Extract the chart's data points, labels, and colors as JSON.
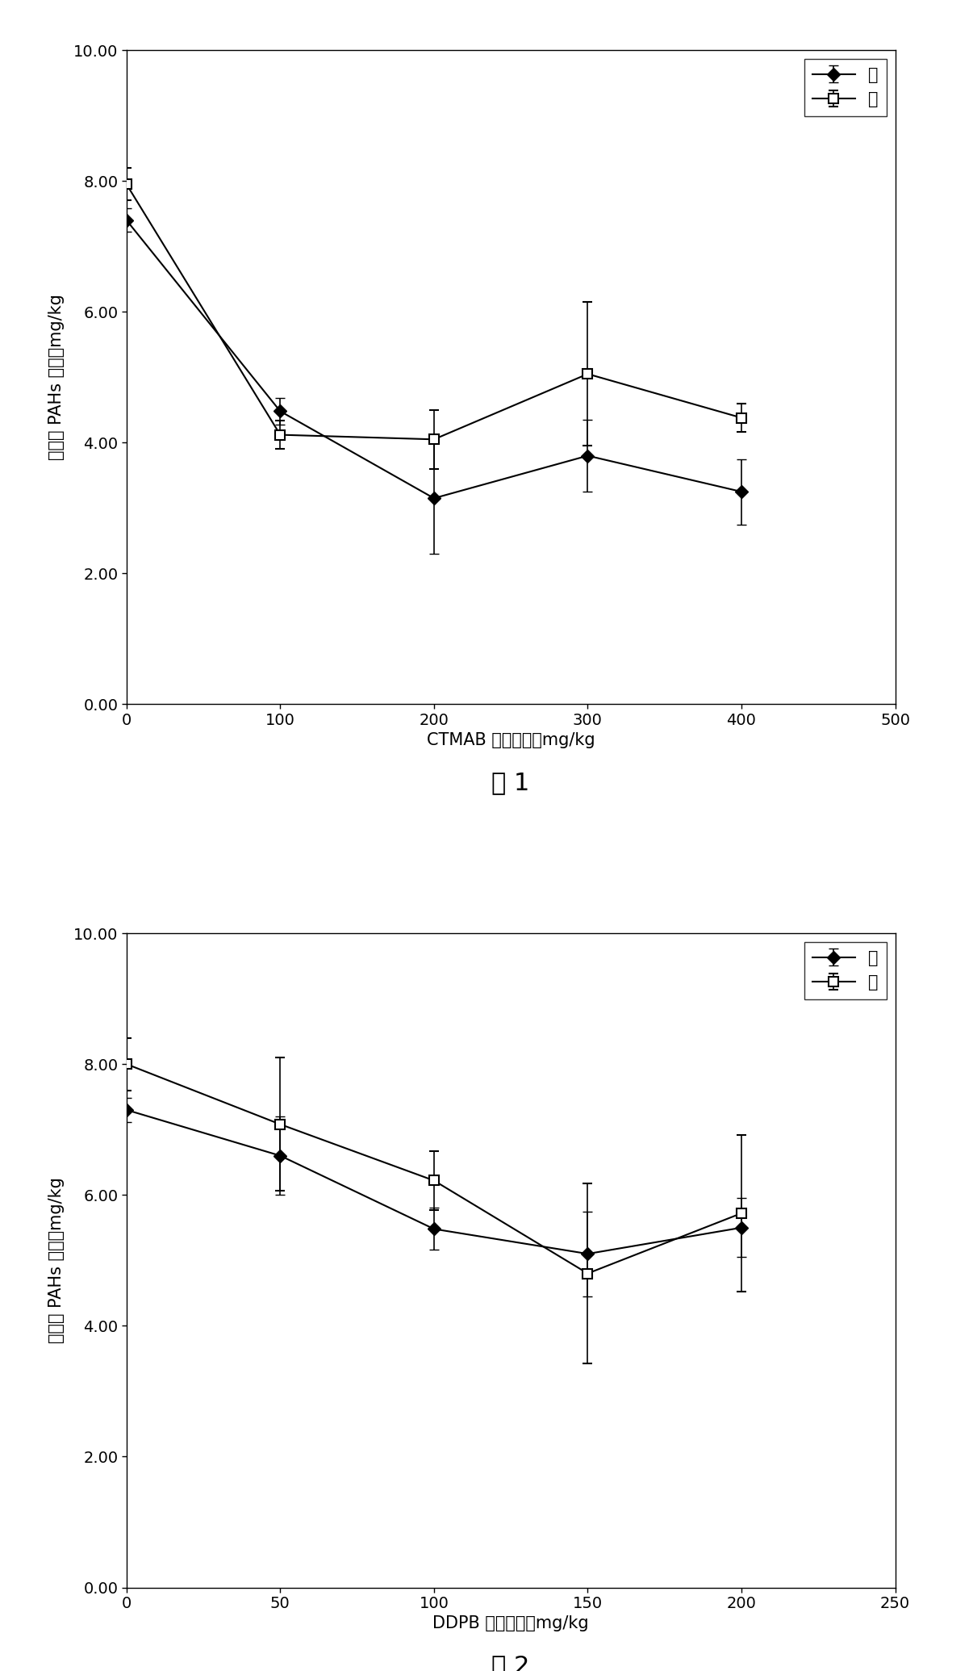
{
  "fig1": {
    "x": [
      0,
      100,
      200,
      300,
      400
    ],
    "y_fei": [
      7.4,
      4.48,
      3.15,
      3.8,
      3.25
    ],
    "y_ton": [
      7.95,
      4.12,
      4.05,
      5.05,
      4.38
    ],
    "yerr_fei": [
      0.18,
      0.2,
      0.85,
      0.55,
      0.5
    ],
    "yerr_ton": [
      0.25,
      0.22,
      0.45,
      1.1,
      0.22
    ],
    "xlabel": "CTMAB 投加浓度，mg/kg",
    "ylabel": "苎叶中 PAHs 含量，mg/kg",
    "caption": "图 1",
    "ylim": [
      0.0,
      10.0
    ],
    "yticks": [
      0.0,
      2.0,
      4.0,
      6.0,
      8.0,
      10.0
    ],
    "xlim": [
      0,
      500
    ],
    "xticks": [
      0,
      100,
      200,
      300,
      400,
      500
    ]
  },
  "fig2": {
    "x": [
      0,
      50,
      100,
      150,
      200
    ],
    "y_fei": [
      7.3,
      6.6,
      5.48,
      5.1,
      5.5
    ],
    "y_ton": [
      8.0,
      7.08,
      6.22,
      4.8,
      5.72
    ],
    "yerr_fei": [
      0.18,
      0.6,
      0.32,
      0.65,
      0.45
    ],
    "yerr_ton": [
      0.4,
      1.02,
      0.45,
      1.38,
      1.2
    ],
    "xlabel": "DDPB 投加浓度，mg/kg",
    "ylabel": "苎叶中 PAHs 含量，mg/kg",
    "caption": "图 2",
    "ylim": [
      0.0,
      10.0
    ],
    "yticks": [
      0.0,
      2.0,
      4.0,
      6.0,
      8.0,
      10.0
    ],
    "xlim": [
      0,
      250
    ],
    "xticks": [
      0,
      50,
      100,
      150,
      200,
      250
    ]
  },
  "legend_fei": "菲",
  "legend_ton": "蘑",
  "line_color": "#000000",
  "markersize": 8,
  "linewidth": 1.5,
  "capsize": 4,
  "elinewidth": 1.2,
  "ylabel_fontsize": 15,
  "xlabel_fontsize": 15,
  "tick_fontsize": 14,
  "legend_fontsize": 15,
  "caption_fontsize": 22,
  "background_color": "#ffffff"
}
